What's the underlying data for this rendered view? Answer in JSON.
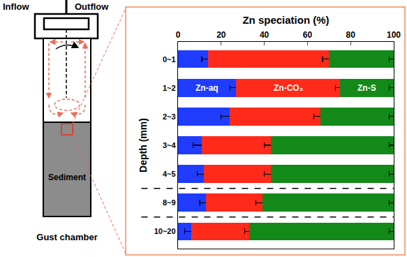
{
  "diagram": {
    "labels": {
      "inflow": "Inflow",
      "outflow": "Outflow",
      "sediment": "Sediment",
      "caption": "Gust chamber"
    }
  },
  "chart_data": {
    "type": "bar",
    "orientation": "horizontal",
    "stacked": true,
    "x_label": "Zn speciation (%)",
    "y_label": "Depth (mm)",
    "categories": [
      "0~1",
      "1~2",
      "2~3",
      "3~4",
      "4~5",
      "8~9",
      "10~20"
    ],
    "series": [
      {
        "name": "Zn-aq",
        "color": "#1f3cff",
        "values": [
          14,
          27,
          24,
          11,
          12,
          13,
          6
        ],
        "errors": [
          3,
          3,
          4,
          4,
          3,
          3,
          3
        ]
      },
      {
        "name": "Zn-CO₃",
        "color": "#ff2a1a",
        "values": [
          56,
          48,
          42,
          32,
          31,
          26,
          27
        ],
        "errors": [
          3,
          2,
          3,
          3,
          3,
          3,
          2
        ]
      },
      {
        "name": "Zn-S",
        "color": "#13891a",
        "values": [
          30,
          25,
          34,
          57,
          57,
          61,
          67
        ],
        "errors": [
          2,
          2,
          2,
          2,
          2,
          2,
          2
        ]
      }
    ],
    "xlim": [
      0,
      100
    ],
    "xticks": [
      0,
      20,
      40,
      60,
      80,
      100
    ],
    "grid": false
  }
}
